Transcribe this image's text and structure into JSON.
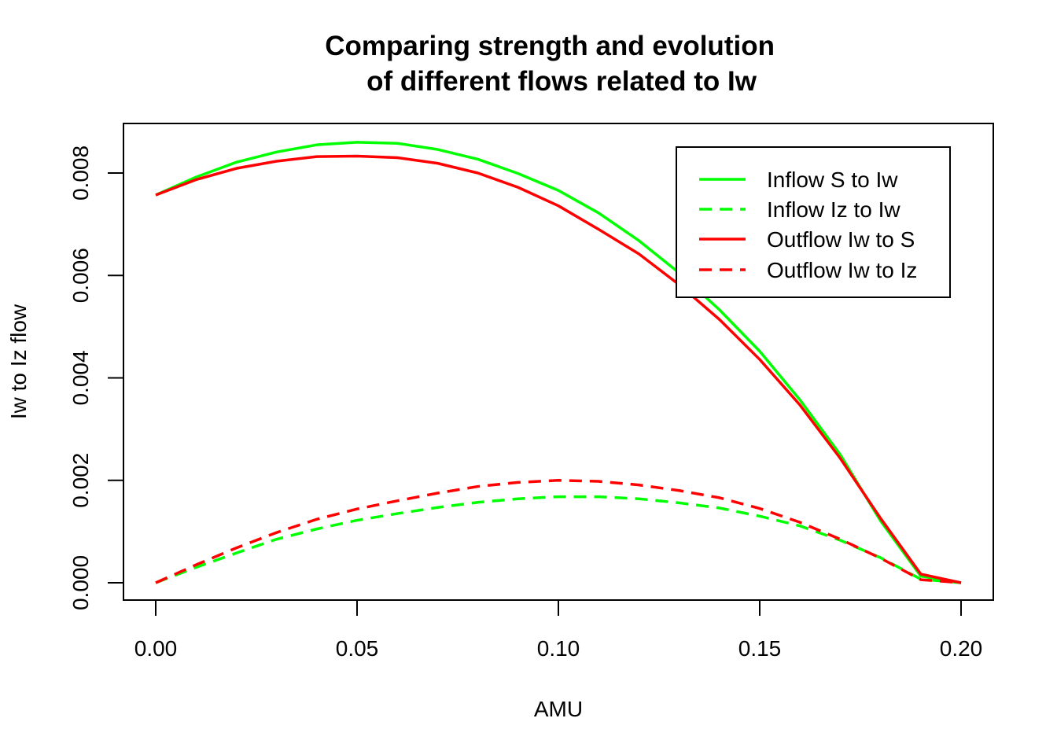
{
  "chart_data": {
    "type": "line",
    "title": "Comparing strength and evolution\nof different flows related to Iw",
    "xlabel": "AMU",
    "ylabel": "Iw to Iz flow",
    "xlim": [
      0.0,
      0.2
    ],
    "ylim": [
      0.0,
      0.0085
    ],
    "x_ticks": [
      0.0,
      0.05,
      0.1,
      0.15,
      0.2
    ],
    "x_tick_labels": [
      "0.00",
      "0.05",
      "0.10",
      "0.15",
      "0.20"
    ],
    "y_ticks": [
      0.0,
      0.002,
      0.004,
      0.006,
      0.008
    ],
    "y_tick_labels": [
      "0.000",
      "0.002",
      "0.004",
      "0.006",
      "0.008"
    ],
    "grid": false,
    "legend_position": "top-right",
    "x": [
      0.0,
      0.01,
      0.02,
      0.03,
      0.04,
      0.05,
      0.06,
      0.07,
      0.08,
      0.09,
      0.1,
      0.11,
      0.12,
      0.13,
      0.14,
      0.15,
      0.16,
      0.17,
      0.18,
      0.19,
      0.2
    ],
    "series": [
      {
        "name": "Inflow S to Iw",
        "color": "#00ff00",
        "line_style": "solid",
        "values": [
          0.00757,
          0.00792,
          0.00821,
          0.00841,
          0.00855,
          0.0086,
          0.00858,
          0.00846,
          0.00827,
          0.00799,
          0.00766,
          0.00722,
          0.00668,
          0.00605,
          0.00533,
          0.00452,
          0.00357,
          0.0025,
          0.00121,
          0.00013,
          0.0
        ]
      },
      {
        "name": "Inflow Iz to Iw",
        "color": "#00ff00",
        "line_style": "dashed",
        "values": [
          0.0,
          0.0003,
          0.00058,
          0.00085,
          0.00105,
          0.00122,
          0.00135,
          0.00147,
          0.00157,
          0.00164,
          0.00168,
          0.00168,
          0.00164,
          0.00156,
          0.00146,
          0.0013,
          0.00111,
          0.00083,
          0.00049,
          7e-05,
          0.0
        ]
      },
      {
        "name": "Outflow Iw to S",
        "color": "#ff0000",
        "line_style": "solid",
        "values": [
          0.00757,
          0.00787,
          0.00809,
          0.00823,
          0.00832,
          0.00833,
          0.0083,
          0.00819,
          0.008,
          0.00772,
          0.00736,
          0.0069,
          0.00642,
          0.00582,
          0.00514,
          0.00436,
          0.00347,
          0.00243,
          0.00126,
          0.00017,
          0.0
        ]
      },
      {
        "name": "Outflow Iw to Iz",
        "color": "#ff0000",
        "line_style": "dashed",
        "values": [
          0.0,
          0.00035,
          0.00068,
          0.00098,
          0.00124,
          0.00144,
          0.0016,
          0.00175,
          0.00188,
          0.00196,
          0.002,
          0.00198,
          0.00191,
          0.0018,
          0.00166,
          0.00145,
          0.00118,
          0.00085,
          0.00048,
          6e-05,
          0.0
        ]
      }
    ]
  }
}
